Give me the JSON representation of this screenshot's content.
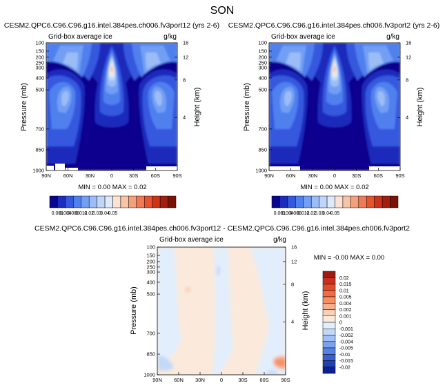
{
  "chart_data": {
    "type": "contour",
    "title": "SON",
    "variable": "Grid-box average ice",
    "units": "g/kg",
    "panels": [
      {
        "id": "case1",
        "subtitle": "CESM2.QPC6.C96.C96.g16.intel.384pes.ch006.fv3port12 (yrs 2-6)",
        "variable": "Grid-box average ice",
        "units": "g/kg",
        "ylabel": "Pressure (mb)",
        "y2label": "Height (km)",
        "xticks": [
          "90N",
          "60N",
          "30N",
          "0",
          "30S",
          "60S",
          "90S"
        ],
        "yticks": [
          "100",
          "150",
          "200",
          "250",
          "300",
          "400",
          "500",
          "700",
          "850",
          "1000"
        ],
        "y2ticks": [
          "16",
          "12",
          "8",
          "4"
        ],
        "stats": "MIN =  0.00  MAX =  0.02"
      },
      {
        "id": "case2",
        "subtitle": "CESM2.QPC6.C96.C96.g16.intel.384pes.ch006.fv3port2 (yrs 2-6)",
        "variable": "Grid-box average ice",
        "units": "g/kg",
        "ylabel": "Pressure (mb)",
        "y2label": "Height (km)",
        "xticks": [
          "90N",
          "60N",
          "30N",
          "0",
          "30S",
          "60S",
          "90S"
        ],
        "yticks": [
          "100",
          "150",
          "200",
          "250",
          "300",
          "400",
          "500",
          "700",
          "850",
          "1000"
        ],
        "y2ticks": [
          "16",
          "12",
          "8",
          "4"
        ],
        "stats": "MIN =  0.00  MAX =  0.02"
      },
      {
        "id": "diff",
        "subtitle": "CESM2.QPC6.C96.C96.g16.intel.384pes.ch006.fv3port12 - CESM2.QPC6.C96.C96.g16.intel.384pes.ch006.fv3port2",
        "variable": "Grid-box average ice",
        "units": "g/kg",
        "ylabel": "Pressure (mb)",
        "y2label": "Height (km)",
        "xticks": [
          "90N",
          "60N",
          "30N",
          "0",
          "30S",
          "60S",
          "90S"
        ],
        "yticks": [
          "100",
          "150",
          "200",
          "250",
          "300",
          "400",
          "500",
          "700",
          "850",
          "1000"
        ],
        "y2ticks": [
          "16",
          "12",
          "8",
          "4"
        ],
        "stats": "MIN = -0.00  MAX =  0.00"
      }
    ],
    "colorbar_abs": {
      "labels": [
        "0.001",
        "0.004",
        "0.008",
        "0.012",
        "0.02",
        "0.03",
        "0.04",
        "0.05"
      ],
      "colors": [
        "#08068f",
        "#1c2cbc",
        "#3458de",
        "#4f80ee",
        "#729ff4",
        "#9bbcf7",
        "#c0d6f9",
        "#dee9fa",
        "#fbe2d3",
        "#f9c4a6",
        "#f4a07c",
        "#ef7a54",
        "#e5532f",
        "#cd3417",
        "#a11f0e",
        "#7c1206"
      ]
    },
    "colorbar_diff": {
      "labels": [
        "0.02",
        "0.015",
        "0.01",
        "0.005",
        "0.004",
        "0.002",
        "0.001",
        "0",
        "-0.001",
        "-0.002",
        "-0.004",
        "-0.005",
        "-0.01",
        "-0.015",
        "-0.02"
      ],
      "colors": [
        "#a01a12",
        "#c8301b",
        "#e24a2a",
        "#f06a42",
        "#f58f64",
        "#f8b08c",
        "#fad0b6",
        "#fbeadc",
        "#e2eefb",
        "#c3d9f8",
        "#a0c0f5",
        "#7aa1ee",
        "#5582e3",
        "#3a60cf",
        "#223fb4",
        "#0d1f94"
      ]
    }
  }
}
